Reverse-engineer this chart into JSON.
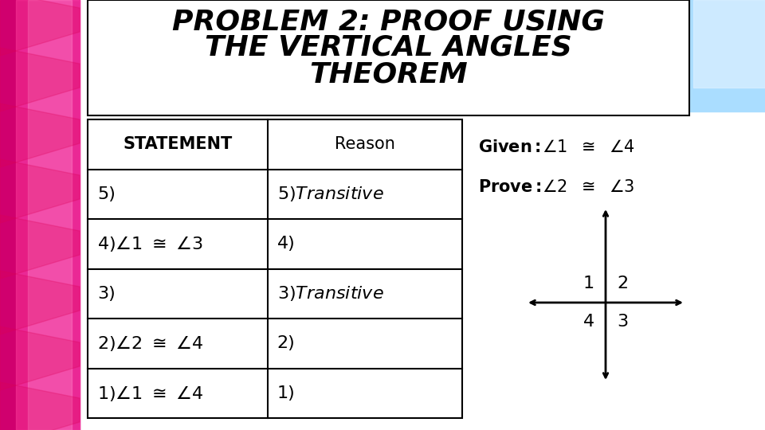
{
  "title_line1": "PROBLEM 2: PROOF USING",
  "title_line2": "THE VERTICAL ANGLES",
  "title_line3": "THEOREM",
  "bg_color": "#ffffff",
  "table_header": [
    "STATEMENT",
    "Reason"
  ],
  "given_label": "Given:",
  "given_math": "∠1  ≅  ∠4",
  "prove_label": "Prove:",
  "prove_math": "∠2  ≅  ∠3",
  "title_fontsize": 26,
  "header_fontsize": 15,
  "cell_fontsize": 16,
  "given_fontsize": 15,
  "cross_fontsize": 16
}
